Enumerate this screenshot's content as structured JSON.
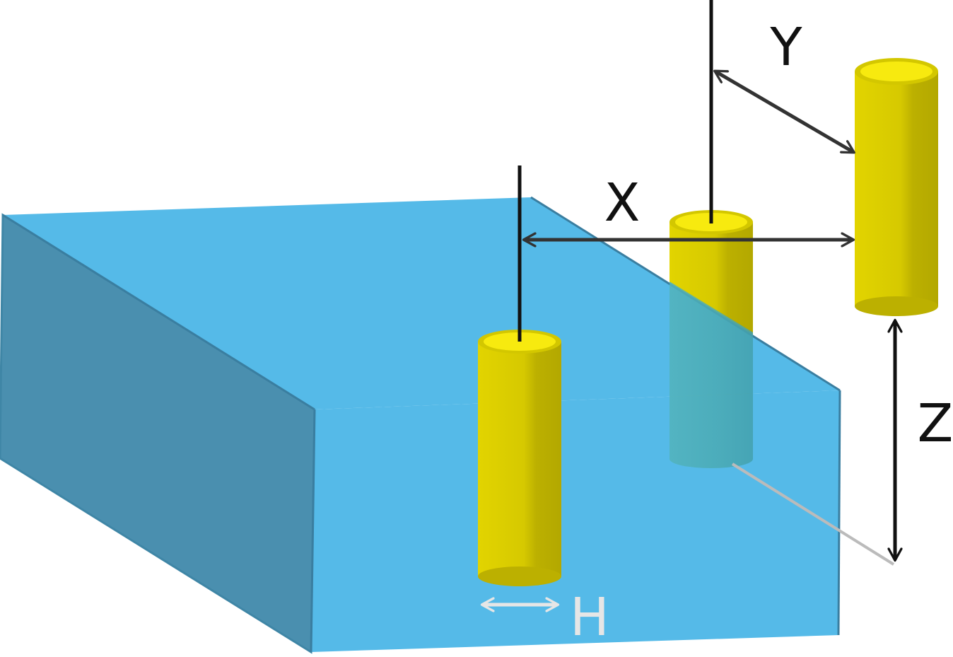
{
  "labels": {
    "x": "X",
    "y": "Y",
    "z": "Z",
    "h": "H"
  },
  "colors": {
    "box_top": "#52b9e8",
    "box_front": "#52b9e8",
    "box_side": "#4a8faf",
    "box_edge": "#3a7ea0",
    "cylinder_body_light": "#e6d600",
    "cylinder_body_dark": "#b8ac00",
    "cylinder_top": "#f7ea0f",
    "submerged": "#4aafb8",
    "dimension_line": "#333333",
    "reference_line": "#111111",
    "h_label": "#e6e6e6",
    "projection_line": "#bbbbbb"
  }
}
